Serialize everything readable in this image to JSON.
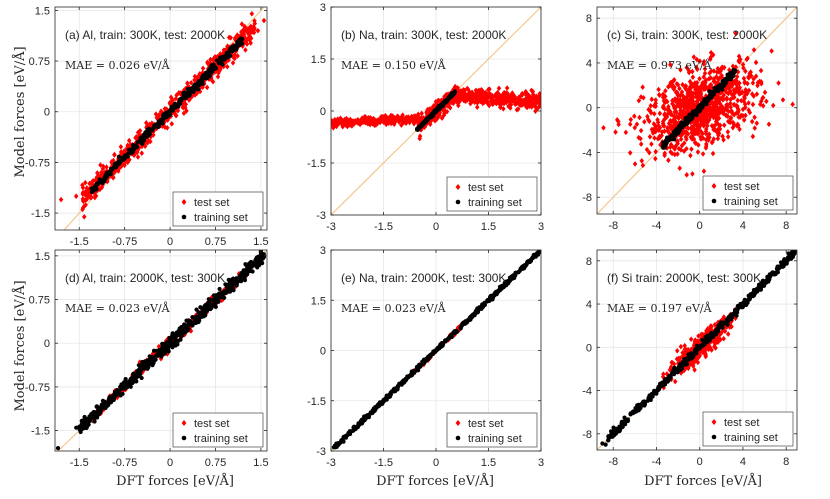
{
  "figure": {
    "ylabel": "Model forces [eV/Å]",
    "xlabel": "DFT forces [eV/Å]",
    "colors": {
      "test": "#ff0000",
      "train": "#000000",
      "diag": "#f5c78a",
      "grid": "#e6e6e6",
      "axis": "#262626"
    },
    "legend": {
      "test": "test set",
      "train": "training set"
    }
  },
  "chart_data": [
    {
      "type": "scatter",
      "title": "(a) Al, train: 300K, test: 2000K",
      "mae": "MAE = 0.026 eV/Å",
      "xlim": [
        -1.9,
        1.6
      ],
      "ylim": [
        -1.75,
        1.55
      ],
      "xticks": [
        -1.5,
        -0.75,
        0,
        0.75,
        1.5
      ],
      "xticklabels": [
        "-1.5",
        "-0.75",
        "0",
        "0.75",
        "1.5"
      ],
      "yticks": [
        -1.5,
        -0.75,
        0,
        0.75,
        1.5
      ],
      "yticklabels": [
        "-1.5",
        "-0.75",
        "0",
        "0.75",
        "1.5"
      ],
      "show_xlabel": false,
      "show_ylabel": true,
      "series": [
        {
          "name": "test set",
          "segments": [
            {
              "x": [
                -1.45,
                1.4
              ],
              "slope": 0.9,
              "intercept": 0.0,
              "spread": 0.08,
              "n": 700
            }
          ],
          "points": [
            [
              -1.8,
              -1.3
            ],
            [
              -1.55,
              -1.25
            ],
            [
              1.55,
              1.35
            ],
            [
              1.35,
              1.45
            ],
            [
              -1.4,
              -1.05
            ],
            [
              1.45,
              1.2
            ]
          ]
        },
        {
          "name": "training set",
          "segments": [
            {
              "x": [
                -1.3,
                1.2
              ],
              "slope": 0.9,
              "intercept": 0.0,
              "spread": 0.03,
              "n": 350
            }
          ],
          "points": []
        }
      ]
    },
    {
      "type": "scatter",
      "title": "(b) Na, train: 300K, test: 2000K",
      "mae": "MAE = 0.150 eV/Å",
      "xlim": [
        -3,
        3
      ],
      "ylim": [
        -3,
        3
      ],
      "xticks": [
        -3,
        -1.5,
        0,
        1.5,
        3
      ],
      "xticklabels": [
        "-3",
        "-1.5",
        "0",
        "1.5",
        "3"
      ],
      "yticks": [
        -3,
        -1.5,
        0,
        1.5,
        3
      ],
      "yticklabels": [
        "-3",
        "-1.5",
        "0",
        "1.5",
        "3"
      ],
      "show_xlabel": false,
      "show_ylabel": false,
      "series": [
        {
          "name": "test set",
          "segments": [
            {
              "x": [
                -3.0,
                -0.5
              ],
              "slope": 0.05,
              "intercept": -0.2,
              "spread": 0.06,
              "n": 260
            },
            {
              "x": [
                -0.5,
                0.55
              ],
              "slope": 0.85,
              "intercept": 0.0,
              "spread": 0.12,
              "n": 280
            },
            {
              "x": [
                0.55,
                3.0
              ],
              "slope": -0.08,
              "intercept": 0.5,
              "spread": 0.12,
              "n": 360
            }
          ],
          "points": []
        },
        {
          "name": "training set",
          "segments": [
            {
              "x": [
                -0.55,
                0.55
              ],
              "slope": 1.0,
              "intercept": 0.0,
              "spread": 0.02,
              "n": 220
            }
          ],
          "points": []
        }
      ]
    },
    {
      "type": "scatter",
      "title": "(c) Si, train: 300K, test: 2000K",
      "mae": "MAE = 0.973 eV/Å",
      "xlim": [
        -9.5,
        9
      ],
      "ylim": [
        -9.5,
        9
      ],
      "xticks": [
        -8,
        -4,
        0,
        4,
        8
      ],
      "xticklabels": [
        "-8",
        "-4",
        "0",
        "4",
        "8"
      ],
      "yticks": [
        -8,
        -4,
        0,
        4,
        8
      ],
      "yticklabels": [
        "-8",
        "-4",
        "0",
        "4",
        "8"
      ],
      "show_xlabel": false,
      "show_ylabel": false,
      "series": [
        {
          "name": "test set",
          "cloud": {
            "cx": 0.2,
            "cy": 0.0,
            "sx": 2.6,
            "sy": 1.9,
            "rho": 0.45,
            "n": 900
          },
          "points": [
            [
              -8.9,
              -1.8
            ],
            [
              -7.5,
              -1.5
            ],
            [
              5.6,
              0.3
            ],
            [
              6.8,
              0.2
            ],
            [
              7.7,
              0.7
            ],
            [
              8.6,
              0.3
            ],
            [
              -2.9,
              -4.7
            ],
            [
              -4.6,
              -2.6
            ],
            [
              -1.2,
              -6.0
            ]
          ]
        },
        {
          "name": "training set",
          "segments": [
            {
              "x": [
                -3.4,
                3.3
              ],
              "slope": 1.0,
              "intercept": 0.0,
              "spread": 0.15,
              "n": 300
            }
          ],
          "points": []
        }
      ]
    },
    {
      "type": "scatter",
      "title": "(d) Al, train: 2000K, test: 300K",
      "mae": "MAE = 0.023 eV/Å",
      "xlim": [
        -1.9,
        1.6
      ],
      "ylim": [
        -1.85,
        1.6
      ],
      "xticks": [
        -1.5,
        -0.75,
        0,
        0.75,
        1.5
      ],
      "xticklabels": [
        "-1.5",
        "-0.75",
        "0",
        "0.75",
        "1.5"
      ],
      "yticks": [
        -1.5,
        -0.75,
        0,
        0.75,
        1.5
      ],
      "yticklabels": [
        "-1.5",
        "-0.75",
        "0",
        "0.75",
        "1.5"
      ],
      "show_xlabel": true,
      "show_ylabel": true,
      "series": [
        {
          "name": "test set",
          "segments": [
            {
              "x": [
                -1.3,
                1.3
              ],
              "slope": 0.98,
              "intercept": 0.0,
              "spread": 0.05,
              "n": 300
            }
          ],
          "points": []
        },
        {
          "name": "training set",
          "segments": [
            {
              "x": [
                -1.5,
                1.55
              ],
              "slope": 0.98,
              "intercept": 0.0,
              "spread": 0.05,
              "n": 650
            }
          ],
          "points": [
            [
              -1.85,
              -1.8
            ],
            [
              -1.55,
              -1.45
            ],
            [
              1.5,
              1.55
            ]
          ]
        }
      ]
    },
    {
      "type": "scatter",
      "title": "(e) Na, train: 2000K, test: 300K",
      "mae": "MAE = 0.023 eV/Å",
      "xlim": [
        -3,
        3
      ],
      "ylim": [
        -3,
        3
      ],
      "xticks": [
        -3,
        -1.5,
        0,
        1.5,
        3
      ],
      "xticklabels": [
        "-3",
        "-1.5",
        "0",
        "1.5",
        "3"
      ],
      "yticks": [
        -3,
        -1.5,
        0,
        1.5,
        3
      ],
      "yticklabels": [
        "-3",
        "-1.5",
        "0",
        "1.5",
        "3"
      ],
      "show_xlabel": true,
      "show_ylabel": false,
      "series": [
        {
          "name": "test set",
          "segments": [
            {
              "x": [
                -0.7,
                0.7
              ],
              "slope": 1.0,
              "intercept": 0.0,
              "spread": 0.03,
              "n": 100
            }
          ],
          "points": []
        },
        {
          "name": "training set",
          "segments": [
            {
              "x": [
                -2.95,
                3.0
              ],
              "slope": 1.0,
              "intercept": 0.0,
              "spread": 0.03,
              "n": 500
            }
          ],
          "points": []
        }
      ]
    },
    {
      "type": "scatter",
      "title": "(f) Si train: 2000K, test: 300K",
      "mae": "MAE = 0.197 eV/Å",
      "xlim": [
        -9.5,
        9
      ],
      "ylim": [
        -9.5,
        9
      ],
      "xticks": [
        -8,
        -4,
        0,
        4,
        8
      ],
      "xticklabels": [
        "-8",
        "-4",
        "0",
        "4",
        "8"
      ],
      "yticks": [
        -8,
        -4,
        0,
        4,
        8
      ],
      "yticklabels": [
        "-8",
        "-4",
        "0",
        "4",
        "8"
      ],
      "show_xlabel": true,
      "show_ylabel": false,
      "series": [
        {
          "name": "test set",
          "cloud": {
            "cx": 0.0,
            "cy": 0.0,
            "sx": 1.4,
            "sy": 1.3,
            "rho": 0.92,
            "n": 450
          },
          "points": []
        },
        {
          "name": "training set",
          "segments": [
            {
              "x": [
                -8.5,
                8.8
              ],
              "slope": 1.0,
              "intercept": 0.0,
              "spread": 0.18,
              "n": 420
            }
          ],
          "points": [
            [
              -9.0,
              -8.9
            ],
            [
              -8.7,
              -9.0
            ],
            [
              -7.2,
              -6.9
            ],
            [
              -6.4,
              -6.2
            ],
            [
              8.8,
              8.8
            ],
            [
              8.5,
              8.4
            ]
          ]
        }
      ]
    }
  ]
}
